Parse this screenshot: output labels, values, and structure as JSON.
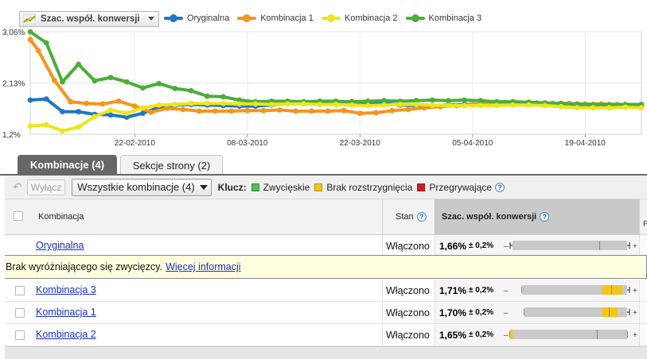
{
  "metric_selector": {
    "label": "Szac. współ. konwersji",
    "icon": "line-chart-icon"
  },
  "legend": [
    {
      "name": "Oryginalna",
      "color": "#1f77c4"
    },
    {
      "name": "Kombinacja 1",
      "color": "#f7941d"
    },
    {
      "name": "Kombinacja 2",
      "color": "#ebe61e"
    },
    {
      "name": "Kombinacja 3",
      "color": "#4cad3a"
    }
  ],
  "chart_data": {
    "type": "line",
    "x_ticks": [
      "22-02-2010",
      "08-03-2010",
      "22-03-2010",
      "05-04-2010",
      "19-04-2010"
    ],
    "y_ticks": [
      "3,06%",
      "2,13%",
      "1,2%"
    ],
    "ylim": [
      1.2,
      3.06
    ],
    "x_range": [
      "2010-02-09",
      "2010-04-26"
    ],
    "grid": true,
    "series": [
      {
        "name": "Oryginalna",
        "color": "#1f77c4",
        "x": [
          "2010-02-09",
          "2010-02-11",
          "2010-02-13",
          "2010-02-15",
          "2010-02-17",
          "2010-02-19",
          "2010-02-21",
          "2010-02-23",
          "2010-02-25",
          "2010-02-27",
          "2010-03-01",
          "2010-03-03",
          "2010-03-05",
          "2010-03-07",
          "2010-03-09",
          "2010-03-11",
          "2010-03-13",
          "2010-03-15",
          "2010-03-17",
          "2010-03-19",
          "2010-03-21",
          "2010-03-23",
          "2010-03-25",
          "2010-03-27",
          "2010-03-29",
          "2010-03-31",
          "2010-04-02",
          "2010-04-04",
          "2010-04-06",
          "2010-04-08",
          "2010-04-10",
          "2010-04-12",
          "2010-04-14",
          "2010-04-16",
          "2010-04-18",
          "2010-04-20",
          "2010-04-22",
          "2010-04-24",
          "2010-04-26"
        ],
        "values": [
          1.82,
          1.84,
          1.61,
          1.61,
          1.56,
          1.55,
          1.51,
          1.58,
          1.69,
          1.73,
          1.74,
          1.73,
          1.72,
          1.71,
          1.71,
          1.73,
          1.76,
          1.77,
          1.77,
          1.79,
          1.79,
          1.77,
          1.76,
          1.73,
          1.72,
          1.72,
          1.73,
          1.74,
          1.75,
          1.76,
          1.77,
          1.78,
          1.76,
          1.75,
          1.74,
          1.73,
          1.72,
          1.71,
          1.71
        ]
      },
      {
        "name": "Kombinacja 1",
        "color": "#f7941d",
        "x": [
          "2010-02-09",
          "2010-02-10",
          "2010-02-12",
          "2010-02-14",
          "2010-02-16",
          "2010-02-18",
          "2010-02-20",
          "2010-02-22",
          "2010-02-24",
          "2010-02-26",
          "2010-02-28",
          "2010-03-02",
          "2010-03-04",
          "2010-03-06",
          "2010-03-08",
          "2010-03-10",
          "2010-03-12",
          "2010-03-14",
          "2010-03-16",
          "2010-03-18",
          "2010-03-20",
          "2010-03-22",
          "2010-03-24",
          "2010-03-26",
          "2010-03-28",
          "2010-03-30",
          "2010-04-01",
          "2010-04-03",
          "2010-04-05",
          "2010-04-07",
          "2010-04-09",
          "2010-04-11",
          "2010-04-13",
          "2010-04-15",
          "2010-04-17",
          "2010-04-19",
          "2010-04-21",
          "2010-04-23",
          "2010-04-26"
        ],
        "values": [
          2.92,
          2.72,
          2.18,
          1.79,
          1.76,
          1.75,
          1.8,
          1.71,
          1.6,
          1.67,
          1.65,
          1.62,
          1.62,
          1.62,
          1.63,
          1.63,
          1.64,
          1.62,
          1.62,
          1.62,
          1.63,
          1.58,
          1.59,
          1.63,
          1.65,
          1.68,
          1.7,
          1.72,
          1.74,
          1.76,
          1.77,
          1.77,
          1.77,
          1.76,
          1.76,
          1.75,
          1.75,
          1.74,
          1.74
        ]
      },
      {
        "name": "Kombinacja 2",
        "color": "#ebe61e",
        "x": [
          "2010-02-09",
          "2010-02-11",
          "2010-02-13",
          "2010-02-15",
          "2010-02-17",
          "2010-02-19",
          "2010-02-21",
          "2010-02-23",
          "2010-02-25",
          "2010-02-27",
          "2010-03-01",
          "2010-03-03",
          "2010-03-05",
          "2010-03-07",
          "2010-03-09",
          "2010-03-11",
          "2010-03-13",
          "2010-03-15",
          "2010-03-17",
          "2010-03-19",
          "2010-03-21",
          "2010-03-23",
          "2010-03-25",
          "2010-03-27",
          "2010-03-29",
          "2010-03-31",
          "2010-04-02",
          "2010-04-04",
          "2010-04-06",
          "2010-04-08",
          "2010-04-10",
          "2010-04-12",
          "2010-04-14",
          "2010-04-16",
          "2010-04-18",
          "2010-04-20",
          "2010-04-22",
          "2010-04-24",
          "2010-04-26"
        ],
        "values": [
          1.35,
          1.37,
          1.26,
          1.33,
          1.52,
          1.64,
          1.58,
          1.68,
          1.73,
          1.74,
          1.76,
          1.76,
          1.76,
          1.75,
          1.75,
          1.74,
          1.75,
          1.75,
          1.74,
          1.74,
          1.73,
          1.72,
          1.73,
          1.74,
          1.74,
          1.73,
          1.72,
          1.72,
          1.72,
          1.72,
          1.73,
          1.73,
          1.72,
          1.7,
          1.68,
          1.68,
          1.68,
          1.69,
          1.68
        ]
      },
      {
        "name": "Kombinacja 3",
        "color": "#4cad3a",
        "x": [
          "2010-02-09",
          "2010-02-11",
          "2010-02-13",
          "2010-02-15",
          "2010-02-17",
          "2010-02-19",
          "2010-02-21",
          "2010-02-23",
          "2010-02-25",
          "2010-02-27",
          "2010-03-01",
          "2010-03-03",
          "2010-03-05",
          "2010-03-07",
          "2010-03-09",
          "2010-03-11",
          "2010-03-13",
          "2010-03-15",
          "2010-03-17",
          "2010-03-19",
          "2010-03-21",
          "2010-03-23",
          "2010-03-25",
          "2010-03-27",
          "2010-03-29",
          "2010-03-31",
          "2010-04-02",
          "2010-04-04",
          "2010-04-06",
          "2010-04-08",
          "2010-04-10",
          "2010-04-12",
          "2010-04-14",
          "2010-04-16",
          "2010-04-18",
          "2010-04-20",
          "2010-04-22",
          "2010-04-24",
          "2010-04-26"
        ],
        "values": [
          3.06,
          2.86,
          2.15,
          2.47,
          2.17,
          2.23,
          2.15,
          2.04,
          2.12,
          2.03,
          1.99,
          1.89,
          1.88,
          1.82,
          1.79,
          1.8,
          1.8,
          1.79,
          1.8,
          1.8,
          1.79,
          1.8,
          1.81,
          1.8,
          1.81,
          1.82,
          1.81,
          1.82,
          1.81,
          1.79,
          1.79,
          1.78,
          1.77,
          1.76,
          1.75,
          1.74,
          1.74,
          1.74,
          1.74
        ]
      }
    ]
  },
  "tabs": [
    {
      "label": "Kombinacje (4)",
      "active": true
    },
    {
      "label": "Sekcje strony (2)",
      "active": false
    }
  ],
  "toolbar": {
    "disable_label": "Wyłącz",
    "filter_label": "Wszystkie kombinacje (4)",
    "key_label": "Klucz:",
    "key_items": [
      {
        "label": "Zwycięskie",
        "color": "#5cb85c"
      },
      {
        "label": "Brak rozstrzygnięcia",
        "color": "#f5c518"
      },
      {
        "label": "Przegrywające",
        "color": "#cc1f1f"
      }
    ]
  },
  "table": {
    "headers": {
      "combination": "Kombinacja",
      "status": "Stan",
      "rate": "Szac. współ. konwersji",
      "cut": "P"
    },
    "original": {
      "name": "Oryginalna",
      "status": "Włączono",
      "rate": "1,66%",
      "ci": "± 0,2%",
      "range": [
        0.0,
        1.0
      ],
      "point": 0.75,
      "highlight": null
    },
    "notice": {
      "text": "Brak wyróżniającego się zwycięzcy.",
      "link": "Więcej informacji"
    },
    "rows": [
      {
        "name": "Kombinacja 3",
        "status": "Włączono",
        "rate": "1,71%",
        "ci": "± 0,2%",
        "range": [
          0.1,
          1.0
        ],
        "point": 0.85,
        "highlight": [
          0.77,
          0.94
        ]
      },
      {
        "name": "Kombinacja 1",
        "status": "Włączono",
        "rate": "1,70%",
        "ci": "± 0,2%",
        "range": [
          0.12,
          1.0
        ],
        "point": 0.83,
        "highlight": [
          0.77,
          0.9
        ]
      },
      {
        "name": "Kombinacja 2",
        "status": "Włączono",
        "rate": "1,65%",
        "ci": "± 0,2%",
        "range": [
          0.0,
          0.98
        ],
        "point": 0.73,
        "highlight": [
          0.0,
          0.02
        ]
      }
    ]
  }
}
